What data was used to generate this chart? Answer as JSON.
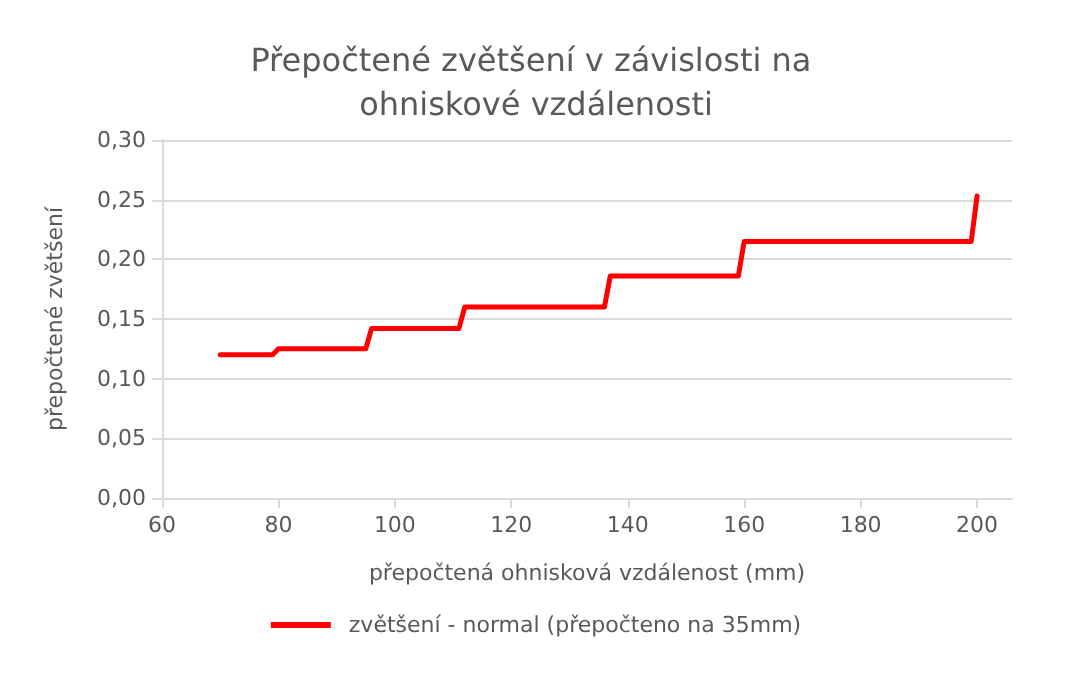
{
  "chart_data": {
    "type": "line",
    "title": "Přepočtené zvětšení v závislosti na ohniskové vzdálenosti",
    "xlabel": "přepočtená ohnisková vzdálenost (mm)",
    "ylabel": "přepočtené zvětšení",
    "x": [
      70,
      79,
      80,
      95,
      96,
      111,
      112,
      136,
      137,
      159,
      160,
      199,
      200
    ],
    "series": [
      {
        "name": "zvětšení - normal (přepočteno na 35mm)",
        "color": "#ff0000",
        "values": [
          0.12,
          0.12,
          0.125,
          0.125,
          0.142,
          0.142,
          0.16,
          0.16,
          0.186,
          0.186,
          0.215,
          0.215,
          0.253
        ]
      }
    ],
    "xlim": [
      60,
      206
    ],
    "xticks": [
      60,
      80,
      100,
      120,
      140,
      160,
      180,
      200
    ],
    "ylim": [
      0,
      0.3
    ],
    "yticks": [
      {
        "value": 0,
        "label": "0,00"
      },
      {
        "value": 0.05,
        "label": "0,05"
      },
      {
        "value": 0.1,
        "label": "0,10"
      },
      {
        "value": 0.15,
        "label": "0,15"
      },
      {
        "value": 0.2,
        "label": "0,20"
      },
      {
        "value": 0.25,
        "label": "0,25"
      },
      {
        "value": 0.3,
        "label": "0,30"
      }
    ],
    "grid": "y",
    "legend": "bottom",
    "marker": "none",
    "line_style": "solid"
  }
}
